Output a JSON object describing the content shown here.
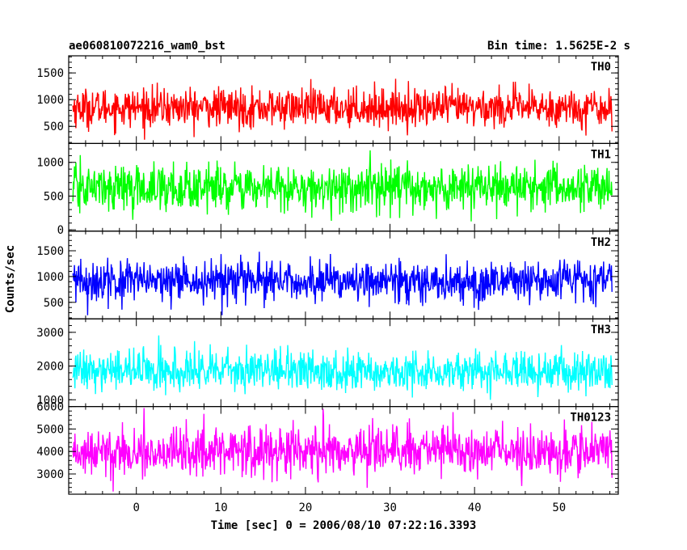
{
  "chart_data": {
    "type": "line",
    "title": "ae060810072216_wam0_bst",
    "subtitle": "Bin time: 1.5625E-2 s",
    "xlabel": "Time [sec] 0 = 2006/08/10 07:22:16.3393",
    "ylabel": "Counts/sec",
    "xlim": [
      -8,
      57
    ],
    "x_range_data": [
      -7.5,
      56.25
    ],
    "x_ticks": [
      0,
      10,
      20,
      30,
      40,
      50
    ],
    "x_tick_labels": [
      "0",
      "10",
      "20",
      "30",
      "40",
      "50"
    ],
    "grid": false,
    "legend": "none",
    "panels": [
      {
        "name": "TH0",
        "color": "#ff0000",
        "ylim": [
          180,
          1820
        ],
        "yticks": [
          500,
          1000,
          1500
        ],
        "ytick_labels": [
          "500",
          "1000",
          "1500"
        ],
        "mean": 850,
        "sd": 180,
        "min": 250,
        "max": 1800
      },
      {
        "name": "TH1",
        "color": "#00ff00",
        "ylim": [
          -20,
          1280
        ],
        "yticks": [
          0,
          500,
          1000
        ],
        "ytick_labels": [
          "0",
          "500",
          "1000"
        ],
        "mean": 620,
        "sd": 170,
        "min": 80,
        "max": 1270
      },
      {
        "name": "TH2",
        "color": "#0000ff",
        "ylim": [
          180,
          1880
        ],
        "yticks": [
          500,
          1000,
          1500
        ],
        "ytick_labels": [
          "500",
          "1000",
          "1500"
        ],
        "mean": 900,
        "sd": 200,
        "min": 250,
        "max": 1870
      },
      {
        "name": "TH3",
        "color": "#00ffff",
        "ylim": [
          800,
          3400
        ],
        "yticks": [
          1000,
          2000,
          3000
        ],
        "ytick_labels": [
          "1000",
          "2000",
          "3000"
        ],
        "mean": 1850,
        "sd": 300,
        "min": 1000,
        "max": 3380
      },
      {
        "name": "TH0123",
        "color": "#ff00ff",
        "ylim": [
          2100,
          6000
        ],
        "yticks": [
          3000,
          4000,
          5000,
          6000
        ],
        "ytick_labels": [
          "3000",
          "4000",
          "5000",
          "6000"
        ],
        "mean": 4000,
        "sd": 550,
        "min": 2200,
        "max": 5950
      }
    ]
  }
}
